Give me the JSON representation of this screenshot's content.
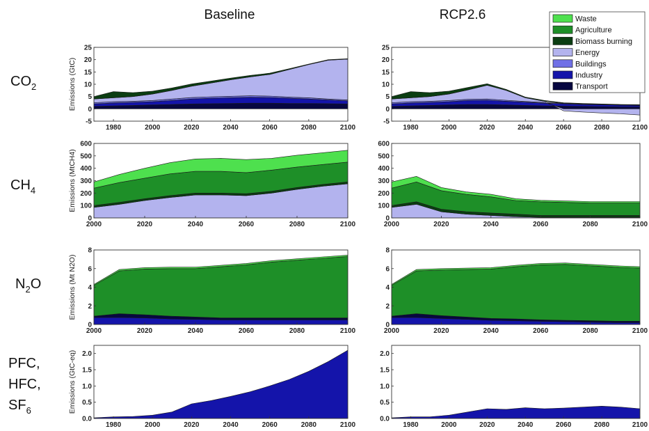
{
  "columns": [
    "Baseline",
    "RCP2.6"
  ],
  "rows": [
    {
      "label": "CO",
      "sub": "2",
      "ylabel": "Emissions (GtC)"
    },
    {
      "label": "CH",
      "sub": "4",
      "ylabel": "Emissions (MtCH4)"
    },
    {
      "label": "N",
      "sub": "2",
      "label2": "O",
      "ylabel": "Emissions (Mt N2O)"
    },
    {
      "label": "PFC,",
      "label_line2": "HFC,",
      "label_line3": "SF",
      "sub": "6",
      "ylabel": "Emissions (GtC-eq)"
    }
  ],
  "legend": [
    {
      "name": "Waste",
      "color": "#4ee04e"
    },
    {
      "name": "Agriculture",
      "color": "#1e8f28"
    },
    {
      "name": "Biomass burning",
      "color": "#0b3d12"
    },
    {
      "name": "Energy",
      "color": "#b3b3ee"
    },
    {
      "name": "Buildings",
      "color": "#6f6fe6"
    },
    {
      "name": "Industry",
      "color": "#1414aa"
    },
    {
      "name": "Transport",
      "color": "#070740"
    }
  ],
  "chart_data": [
    {
      "type": "area",
      "row": "CO2",
      "col": "Baseline",
      "ylabel": "Emissions (GtC)",
      "x": [
        1970,
        1980,
        1990,
        2000,
        2010,
        2020,
        2030,
        2040,
        2050,
        2060,
        2070,
        2080,
        2090,
        2100
      ],
      "xticks": [
        1980,
        2000,
        2020,
        2040,
        2060,
        2080,
        2100
      ],
      "xlim": [
        1970,
        2100
      ],
      "ylim": [
        -5,
        25
      ],
      "yticks": [
        -5,
        0,
        5,
        10,
        15,
        20,
        25
      ],
      "series": [
        {
          "name": "Transport",
          "color": "#070740",
          "values": [
            1,
            1.2,
            1.4,
            1.6,
            1.8,
            2.0,
            2.1,
            2.2,
            2.3,
            2.3,
            2.2,
            2.2,
            2.1,
            2.0
          ]
        },
        {
          "name": "Industry",
          "color": "#1414aa",
          "values": [
            1,
            1.2,
            1.2,
            1.3,
            1.6,
            2.0,
            2.2,
            2.3,
            2.4,
            2.3,
            2.1,
            1.8,
            1.5,
            1.2
          ]
        },
        {
          "name": "Buildings",
          "color": "#6f6fe6",
          "values": [
            0.5,
            0.5,
            0.5,
            0.5,
            0.6,
            0.6,
            0.6,
            0.6,
            0.6,
            0.6,
            0.5,
            0.5,
            0.4,
            0.4
          ]
        },
        {
          "name": "Energy",
          "color": "#b3b3ee",
          "values": [
            1.5,
            1.6,
            1.9,
            2.6,
            3.5,
            4.6,
            5.6,
            6.7,
            7.7,
            8.8,
            11.2,
            13.5,
            15.8,
            16.6
          ]
        },
        {
          "name": "Biomass burning",
          "color": "#0b3d12",
          "values": [
            1,
            2.5,
            1.6,
            1.2,
            1.0,
            0.9,
            0.8,
            0.7,
            0.6,
            0.5,
            0.3,
            0.2,
            0.2,
            0.2
          ]
        }
      ]
    },
    {
      "type": "area",
      "row": "CO2",
      "col": "RCP2.6",
      "ylabel": "Emissions (GtC)",
      "x": [
        1970,
        1980,
        1990,
        2000,
        2010,
        2020,
        2030,
        2040,
        2050,
        2060,
        2070,
        2080,
        2090,
        2100
      ],
      "xticks": [
        1980,
        2000,
        2020,
        2040,
        2060,
        2080,
        2100
      ],
      "xlim": [
        1970,
        2100
      ],
      "ylim": [
        -5,
        25
      ],
      "yticks": [
        -5,
        0,
        5,
        10,
        15,
        20,
        25
      ],
      "series": [
        {
          "name": "Transport",
          "color": "#070740",
          "values": [
            1,
            1.2,
            1.4,
            1.6,
            1.8,
            1.8,
            1.6,
            1.4,
            1.2,
            1.1,
            1.0,
            0.9,
            0.8,
            0.8
          ]
        },
        {
          "name": "Industry",
          "color": "#1414aa",
          "values": [
            1,
            1.2,
            1.2,
            1.3,
            1.6,
            1.7,
            1.5,
            1.3,
            1.1,
            1.0,
            0.8,
            0.8,
            0.7,
            0.6
          ]
        },
        {
          "name": "Buildings",
          "color": "#6f6fe6",
          "values": [
            0.5,
            0.5,
            0.5,
            0.5,
            0.5,
            0.5,
            0.4,
            0.3,
            0.3,
            0.2,
            0.2,
            0.1,
            0.1,
            0.1
          ]
        },
        {
          "name": "Energy",
          "color": "#b3b3ee",
          "values": [
            1.5,
            1.6,
            1.9,
            2.6,
            3.8,
            5.6,
            4.0,
            1.5,
            0.5,
            -0.8,
            -1.3,
            -1.7,
            -2.0,
            -2.5
          ]
        },
        {
          "name": "Biomass burning",
          "color": "#0b3d12",
          "values": [
            1,
            2.5,
            1.6,
            1.2,
            1.0,
            0.6,
            0.4,
            0.3,
            0.3,
            0.2,
            0.2,
            0.2,
            0.2,
            0.2
          ]
        }
      ]
    },
    {
      "type": "area",
      "row": "CH4",
      "col": "Baseline",
      "ylabel": "Emissions (MtCH4)",
      "x": [
        2000,
        2010,
        2020,
        2030,
        2040,
        2050,
        2060,
        2070,
        2080,
        2090,
        2100
      ],
      "xticks": [
        2000,
        2020,
        2040,
        2060,
        2080,
        2100
      ],
      "xlim": [
        2000,
        2100
      ],
      "ylim": [
        0,
        600
      ],
      "yticks": [
        0,
        100,
        200,
        300,
        400,
        500,
        600
      ],
      "series": [
        {
          "name": "Energy",
          "color": "#b3b3ee",
          "values": [
            85,
            110,
            140,
            165,
            185,
            185,
            180,
            200,
            230,
            255,
            275
          ]
        },
        {
          "name": "Biomass burning",
          "color": "#0b3d12",
          "values": [
            15,
            15,
            15,
            15,
            15,
            15,
            15,
            15,
            15,
            15,
            15
          ]
        },
        {
          "name": "Agriculture",
          "color": "#1e8f28",
          "values": [
            140,
            160,
            165,
            175,
            175,
            175,
            170,
            170,
            165,
            160,
            160
          ]
        },
        {
          "name": "Waste",
          "color": "#4ee04e",
          "values": [
            50,
            65,
            80,
            90,
            100,
            105,
            105,
            95,
            95,
            95,
            95
          ]
        }
      ]
    },
    {
      "type": "area",
      "row": "CH4",
      "col": "RCP2.6",
      "ylabel": "Emissions (MtCH4)",
      "x": [
        2000,
        2010,
        2020,
        2030,
        2040,
        2050,
        2060,
        2070,
        2080,
        2090,
        2100
      ],
      "xticks": [
        2000,
        2020,
        2040,
        2060,
        2080,
        2100
      ],
      "xlim": [
        2000,
        2100
      ],
      "ylim": [
        0,
        600
      ],
      "yticks": [
        0,
        100,
        200,
        300,
        400,
        500,
        600
      ],
      "series": [
        {
          "name": "Energy",
          "color": "#b3b3ee",
          "values": [
            85,
            110,
            50,
            30,
            20,
            10,
            5,
            5,
            5,
            5,
            5
          ]
        },
        {
          "name": "Biomass burning",
          "color": "#0b3d12",
          "values": [
            15,
            20,
            20,
            20,
            20,
            20,
            15,
            15,
            15,
            15,
            15
          ]
        },
        {
          "name": "Agriculture",
          "color": "#1e8f28",
          "values": [
            140,
            160,
            150,
            140,
            130,
            110,
            110,
            105,
            100,
            100,
            100
          ]
        },
        {
          "name": "Waste",
          "color": "#4ee04e",
          "values": [
            50,
            45,
            25,
            20,
            20,
            15,
            12,
            12,
            12,
            12,
            12
          ]
        }
      ]
    },
    {
      "type": "area",
      "row": "N2O",
      "col": "Baseline",
      "ylabel": "Emissions (Mt N2O)",
      "x": [
        2000,
        2010,
        2020,
        2030,
        2040,
        2050,
        2060,
        2070,
        2080,
        2090,
        2100
      ],
      "xticks": [
        2000,
        2020,
        2040,
        2060,
        2080,
        2100
      ],
      "xlim": [
        2000,
        2100
      ],
      "ylim": [
        0,
        8
      ],
      "yticks": [
        0,
        2,
        4,
        6,
        8
      ],
      "series": [
        {
          "name": "Energy",
          "color": "#1414aa",
          "values": [
            0.75,
            0.75,
            0.7,
            0.6,
            0.55,
            0.5,
            0.5,
            0.5,
            0.5,
            0.5,
            0.5
          ]
        },
        {
          "name": "Biomass burning",
          "color": "#070740",
          "values": [
            0.15,
            0.4,
            0.35,
            0.3,
            0.25,
            0.2,
            0.2,
            0.2,
            0.2,
            0.2,
            0.2
          ]
        },
        {
          "name": "Agriculture",
          "color": "#1e8f28",
          "values": [
            3.3,
            4.6,
            4.9,
            5.1,
            5.2,
            5.5,
            5.7,
            6.0,
            6.2,
            6.4,
            6.6
          ]
        },
        {
          "name": "Waste",
          "color": "#4ee04e",
          "values": [
            0.1,
            0.15,
            0.15,
            0.15,
            0.15,
            0.15,
            0.15,
            0.15,
            0.15,
            0.15,
            0.15
          ]
        }
      ]
    },
    {
      "type": "area",
      "row": "N2O",
      "col": "RCP2.6",
      "ylabel": "Emissions (Mt N2O)",
      "x": [
        2000,
        2010,
        2020,
        2030,
        2040,
        2050,
        2060,
        2070,
        2080,
        2090,
        2100
      ],
      "xticks": [
        2000,
        2020,
        2040,
        2060,
        2080,
        2100
      ],
      "xlim": [
        2000,
        2100
      ],
      "ylim": [
        0,
        8
      ],
      "yticks": [
        0,
        2,
        4,
        6,
        8
      ],
      "series": [
        {
          "name": "Energy",
          "color": "#1414aa",
          "values": [
            0.75,
            0.75,
            0.65,
            0.55,
            0.45,
            0.4,
            0.35,
            0.3,
            0.25,
            0.2,
            0.2
          ]
        },
        {
          "name": "Biomass burning",
          "color": "#070740",
          "values": [
            0.15,
            0.4,
            0.3,
            0.25,
            0.2,
            0.2,
            0.15,
            0.15,
            0.15,
            0.15,
            0.15
          ]
        },
        {
          "name": "Agriculture",
          "color": "#1e8f28",
          "values": [
            3.3,
            4.6,
            4.9,
            5.1,
            5.3,
            5.6,
            5.9,
            6.0,
            5.9,
            5.8,
            5.7
          ]
        },
        {
          "name": "Waste",
          "color": "#4ee04e",
          "values": [
            0.1,
            0.15,
            0.15,
            0.15,
            0.15,
            0.15,
            0.15,
            0.15,
            0.15,
            0.15,
            0.15
          ]
        }
      ]
    },
    {
      "type": "area",
      "row": "PFC, HFC, SF6",
      "col": "Baseline",
      "ylabel": "Emissions (GtC-eq)",
      "x": [
        1970,
        1980,
        1990,
        2000,
        2010,
        2020,
        2030,
        2040,
        2050,
        2060,
        2070,
        2080,
        2090,
        2100
      ],
      "xticks": [
        1980,
        2000,
        2020,
        2040,
        2060,
        2080,
        2100
      ],
      "xlim": [
        1970,
        2100
      ],
      "ylim": [
        0,
        2.25
      ],
      "yticks": [
        0.0,
        0.5,
        1.0,
        1.5,
        2.0
      ],
      "ytick_labels": [
        "0.0",
        "0.5",
        "1.0",
        "1.5",
        "2.0"
      ],
      "series": [
        {
          "name": "Industry",
          "color": "#1414aa",
          "values": [
            0.02,
            0.05,
            0.06,
            0.1,
            0.2,
            0.45,
            0.55,
            0.68,
            0.82,
            1.0,
            1.2,
            1.45,
            1.75,
            2.1
          ]
        }
      ]
    },
    {
      "type": "area",
      "row": "PFC, HFC, SF6",
      "col": "RCP2.6",
      "ylabel": "Emissions (GtC-eq)",
      "x": [
        1970,
        1980,
        1990,
        2000,
        2010,
        2020,
        2030,
        2040,
        2050,
        2060,
        2070,
        2080,
        2090,
        2100
      ],
      "xticks": [
        1980,
        2000,
        2020,
        2040,
        2060,
        2080,
        2100
      ],
      "xlim": [
        1970,
        2100
      ],
      "ylim": [
        0,
        2.25
      ],
      "yticks": [
        0.0,
        0.5,
        1.0,
        1.5,
        2.0
      ],
      "ytick_labels": [
        "0.0",
        "0.5",
        "1.0",
        "1.5",
        "2.0"
      ],
      "series": [
        {
          "name": "Industry",
          "color": "#1414aa",
          "values": [
            0.02,
            0.05,
            0.05,
            0.1,
            0.2,
            0.3,
            0.28,
            0.33,
            0.3,
            0.32,
            0.35,
            0.38,
            0.35,
            0.3
          ]
        }
      ]
    }
  ]
}
